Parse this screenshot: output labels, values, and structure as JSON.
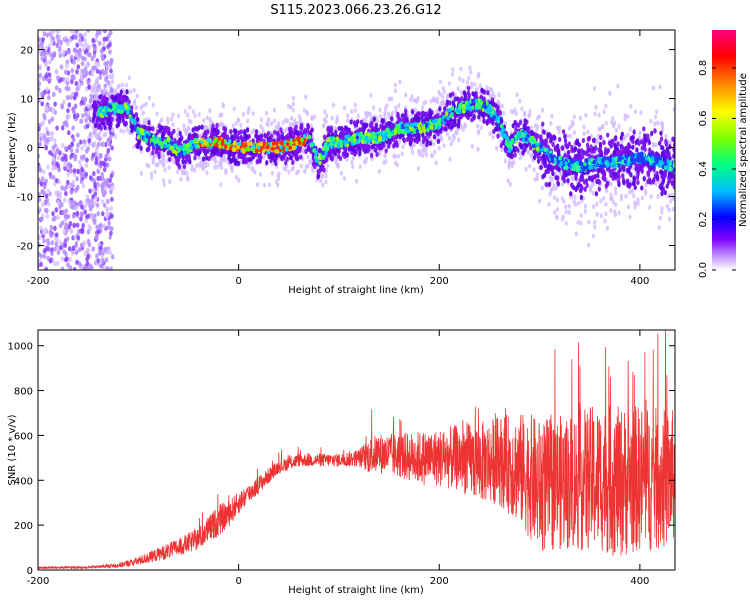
{
  "chart_data": [
    {
      "type": "heatmap",
      "title": "S115.2023.066.23.26.G12",
      "xlabel": "Height of straight line (km)",
      "ylabel": "Frequency (Hz)",
      "xlim": [
        -200,
        435
      ],
      "ylim": [
        -25,
        24
      ],
      "xticks": [
        "-200",
        "0",
        "200",
        "400"
      ],
      "yticks": [
        "20",
        "10",
        "0",
        "-10",
        "-20"
      ],
      "colorbar": {
        "label": "Normalized spectral amplitude",
        "range": [
          0,
          0.95
        ],
        "ticks": [
          "0.0",
          "0.2",
          "0.4",
          "0.6",
          "0.8"
        ],
        "colors": [
          "#ffffff",
          "#c8a0ff",
          "#8000ff",
          "#0000ff",
          "#00c0ff",
          "#00ff80",
          "#80ff00",
          "#ffff00",
          "#ff8000",
          "#ff0000",
          "#ff0080"
        ]
      },
      "ridge": {
        "x": [
          -140,
          -125,
          -110,
          -100,
          -90,
          -80,
          -70,
          -60,
          -50,
          -40,
          -20,
          0,
          20,
          40,
          60,
          70,
          80,
          90,
          100,
          120,
          140,
          160,
          180,
          200,
          210,
          220,
          240,
          250,
          260,
          270,
          280,
          300,
          320,
          340,
          360,
          380,
          400,
          420,
          435
        ],
        "y": [
          7,
          8,
          8,
          3,
          2,
          1,
          1,
          -1,
          0,
          1,
          1,
          0,
          0,
          0,
          1,
          2,
          -3,
          1,
          1,
          2,
          2,
          4,
          4,
          5,
          7,
          8,
          9,
          8,
          5,
          0,
          3,
          0,
          -3,
          -4,
          -3,
          -3,
          -2,
          -3,
          -4
        ],
        "peak_x_range": [
          -40,
          70
        ]
      }
    },
    {
      "type": "line",
      "xlabel": "Height of straight line (km)",
      "ylabel": "SNR (10 * v/v)",
      "xlim": [
        -200,
        435
      ],
      "ylim": [
        0,
        1070
      ],
      "xticks": [
        "-200",
        "0",
        "200",
        "400"
      ],
      "yticks": [
        "0",
        "200",
        "400",
        "600",
        "800",
        "1000"
      ],
      "color": "#ee3333",
      "envelope": {
        "x": [
          -200,
          -150,
          -120,
          -100,
          -80,
          -60,
          -40,
          -30,
          -20,
          -10,
          0,
          20,
          40,
          60,
          80,
          100,
          120,
          130,
          140,
          160,
          180,
          200,
          220,
          240,
          260,
          280,
          290,
          300,
          320,
          340,
          360,
          380,
          400,
          420,
          435
        ],
        "mean": [
          10,
          12,
          20,
          40,
          70,
          100,
          140,
          180,
          220,
          250,
          300,
          380,
          460,
          490,
          490,
          490,
          500,
          510,
          520,
          510,
          500,
          500,
          500,
          480,
          490,
          450,
          420,
          370,
          390,
          400,
          410,
          390,
          410,
          400,
          420
        ],
        "spread": [
          5,
          5,
          10,
          20,
          30,
          40,
          50,
          60,
          70,
          60,
          50,
          40,
          30,
          30,
          30,
          30,
          40,
          80,
          90,
          100,
          120,
          130,
          150,
          180,
          200,
          250,
          280,
          300,
          300,
          320,
          330,
          340,
          330,
          320,
          300
        ]
      }
    }
  ]
}
